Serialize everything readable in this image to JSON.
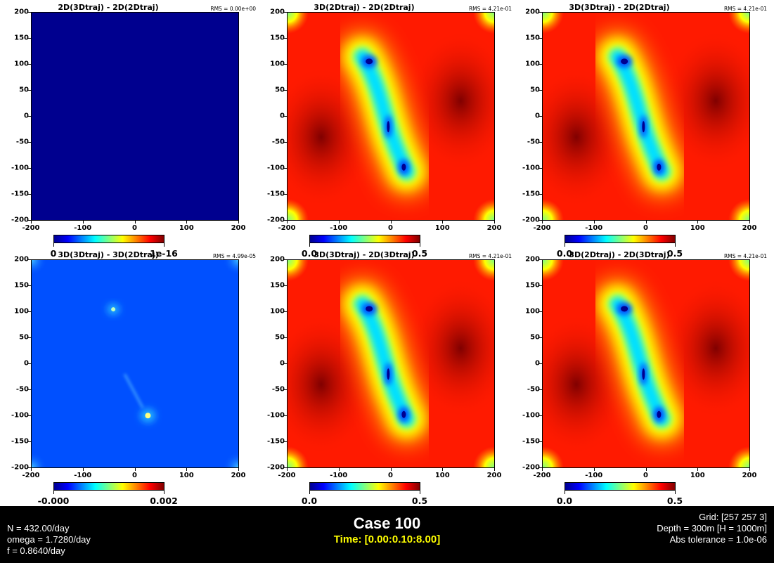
{
  "panels": [
    {
      "title": "2D(3Dtraj) - 2D(2Dtraj)",
      "rms": "RMS = 0.00e+00",
      "field": "zero",
      "cbar_min": "0",
      "cbar_max": "1e-16"
    },
    {
      "title": "3D(2Dtraj) - 2D(2Dtraj)",
      "rms": "RMS = 4.21e-01",
      "field": "diff",
      "cbar_min": "0.0",
      "cbar_max": "0.5"
    },
    {
      "title": "3D(3Dtraj) - 2D(2Dtraj)",
      "rms": "RMS = 4.21e-01",
      "field": "diff",
      "cbar_min": "0.0",
      "cbar_max": "0.5"
    },
    {
      "title": "3D(3Dtraj) - 3D(2Dtraj)",
      "rms": "RMS = 4.99e-05",
      "field": "small",
      "cbar_min": "-0.000",
      "cbar_max": "0.002"
    },
    {
      "title": "3D(3Dtraj) - 2D(3Dtraj)",
      "rms": "RMS = 4.21e-01",
      "field": "diff",
      "cbar_min": "0.0",
      "cbar_max": "0.5"
    },
    {
      "title": "3D(2Dtraj) - 2D(3Dtraj)",
      "rms": "RMS = 4.21e-01",
      "field": "diff",
      "cbar_min": "0.0",
      "cbar_max": "0.5"
    }
  ],
  "axis": {
    "xticks": [
      "-200",
      "-100",
      "0",
      "100",
      "200"
    ],
    "yticks": [
      "200",
      "150",
      "100",
      "50",
      "0",
      "-50",
      "-100",
      "-150",
      "-200"
    ]
  },
  "footer": {
    "case": "Case 100",
    "time": "Time: [0.00:0.10:8.00]",
    "left": [
      "N = 432.00/day",
      "omega = 1.7280/day",
      "f = 0.8640/day"
    ],
    "right": [
      "Grid: [257 257 3]",
      "Depth = 300m  [H = 1000m]",
      "Abs tolerance = 1.0e-06"
    ]
  },
  "chart_data": {
    "type": "heatmap",
    "xlim": [
      -200,
      200
    ],
    "ylim": [
      -200,
      200
    ],
    "colormap": "jet",
    "colors": {
      "low": "#00008f",
      "high": "#800000"
    },
    "grid": false,
    "panels": [
      {
        "title": "2D(3Dtraj) - 2D(2Dtraj)",
        "clim": [
          0,
          1e-16
        ],
        "uniform_value": 0
      },
      {
        "title": "3D(2Dtraj) - 2D(2Dtraj)",
        "clim": [
          0,
          0.5
        ],
        "minima": [
          [
            -40,
            105
          ],
          [
            -5,
            -20
          ],
          [
            25,
            -100
          ]
        ],
        "maxima": [
          [
            -130,
            -40
          ],
          [
            130,
            30
          ]
        ]
      },
      {
        "title": "3D(3Dtraj) - 2D(2Dtraj)",
        "clim": [
          0,
          0.5
        ],
        "minima": [
          [
            -40,
            105
          ],
          [
            -5,
            -20
          ],
          [
            25,
            -100
          ]
        ],
        "maxima": [
          [
            -130,
            -40
          ],
          [
            130,
            30
          ]
        ]
      },
      {
        "title": "3D(3Dtraj) - 3D(2Dtraj)",
        "clim": [
          -0.0,
          0.002
        ],
        "peaks": [
          [
            -40,
            105
          ],
          [
            25,
            -100
          ]
        ]
      },
      {
        "title": "3D(3Dtraj) - 2D(3Dtraj)",
        "clim": [
          0,
          0.5
        ],
        "minima": [
          [
            -40,
            105
          ],
          [
            -5,
            -20
          ],
          [
            25,
            -100
          ]
        ],
        "maxima": [
          [
            -130,
            -40
          ],
          [
            130,
            30
          ]
        ]
      },
      {
        "title": "3D(2Dtraj) - 2D(3Dtraj)",
        "clim": [
          0,
          0.5
        ],
        "minima": [
          [
            -40,
            105
          ],
          [
            -5,
            -20
          ],
          [
            25,
            -100
          ]
        ],
        "maxima": [
          [
            -130,
            -40
          ],
          [
            130,
            30
          ]
        ]
      }
    ]
  }
}
